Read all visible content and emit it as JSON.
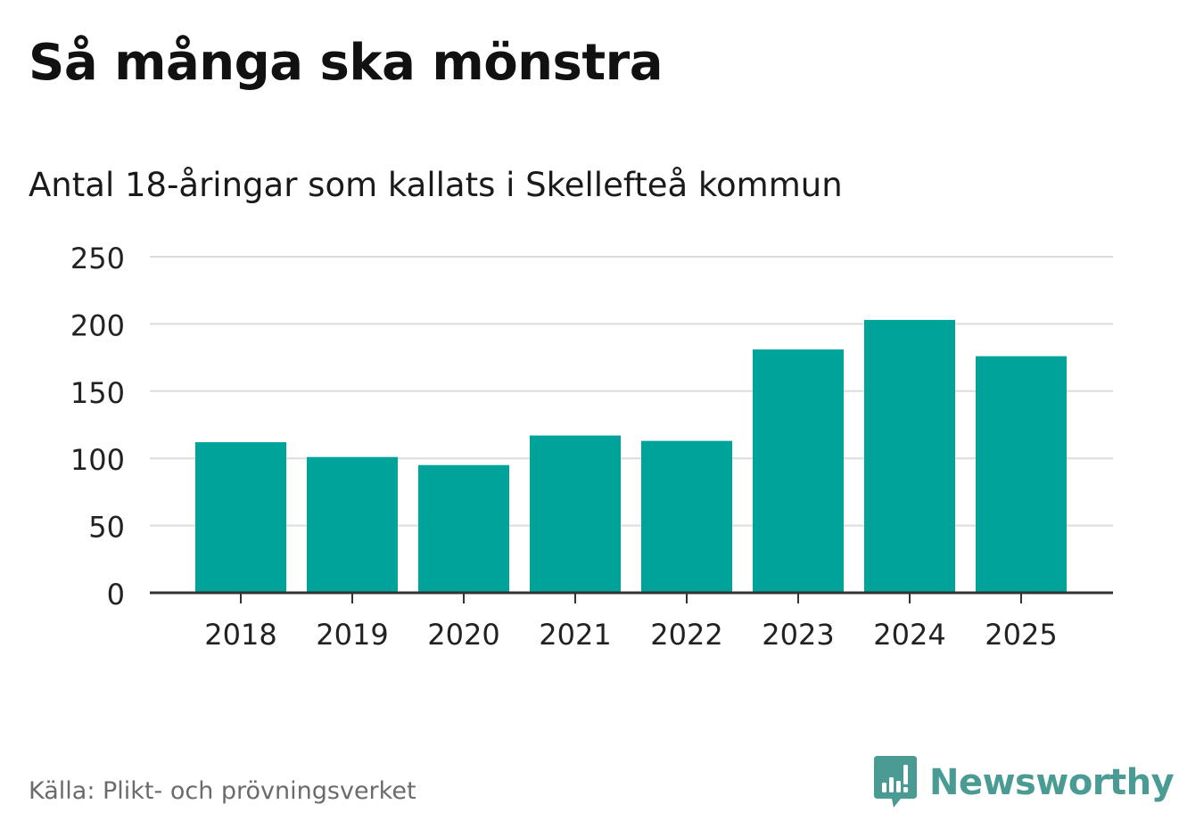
{
  "chart_data": {
    "type": "bar",
    "title": "Så många ska mönstra",
    "subtitle": "Antal 18-åringar som kallats i Skellefteå kommun",
    "categories": [
      "2018",
      "2019",
      "2020",
      "2021",
      "2022",
      "2023",
      "2024",
      "2025"
    ],
    "values": [
      112,
      101,
      95,
      117,
      113,
      181,
      203,
      176
    ],
    "yticks": [
      0,
      50,
      100,
      150,
      200,
      250
    ],
    "ylim": [
      0,
      250
    ],
    "xlabel": "",
    "ylabel": "",
    "grid": true,
    "bar_color": "#00a39a"
  },
  "source": "Källa: Plikt- och prövningsverket",
  "brand": {
    "name": "Newsworthy",
    "icon": "newsworthy-logo-icon",
    "color": "#4a9b93"
  }
}
